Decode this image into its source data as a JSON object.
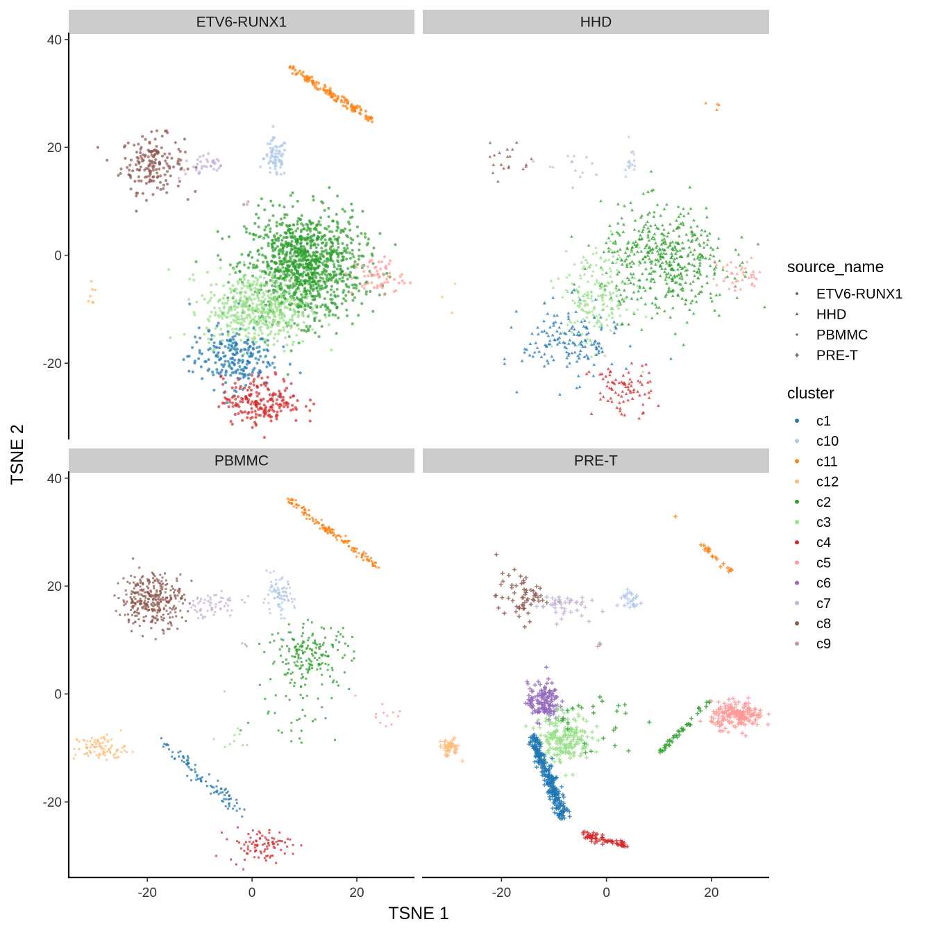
{
  "chart_data": {
    "type": "scatter",
    "xlabel": "TSNE 1",
    "ylabel": "TSNE 2",
    "xlim": [
      -35,
      31
    ],
    "ylim": [
      -34,
      41
    ],
    "x_ticks": [
      -20,
      0,
      20
    ],
    "y_ticks": [
      -20,
      0,
      20,
      40
    ],
    "x_tick_labels": [
      "-20",
      "0",
      "20"
    ],
    "y_tick_labels": [
      "-20",
      "0",
      "20",
      "40"
    ],
    "grid": false,
    "legend_position": "right",
    "facets": [
      "ETV6-RUNX1",
      "HHD",
      "PBMMC",
      "PRE-T"
    ],
    "shape_legend": {
      "title": "source_name",
      "entries": [
        {
          "label": "ETV6-RUNX1",
          "shape": "circle"
        },
        {
          "label": "HHD",
          "shape": "triangle"
        },
        {
          "label": "PBMMC",
          "shape": "square"
        },
        {
          "label": "PRE-T",
          "shape": "plus"
        }
      ]
    },
    "color_legend": {
      "title": "cluster",
      "entries": [
        {
          "label": "c1",
          "color": "#1f77b4"
        },
        {
          "label": "c10",
          "color": "#aec7e8"
        },
        {
          "label": "c11",
          "color": "#ff7f0e"
        },
        {
          "label": "c12",
          "color": "#ffbb78"
        },
        {
          "label": "c2",
          "color": "#2ca02c"
        },
        {
          "label": "c3",
          "color": "#98df8a"
        },
        {
          "label": "c4",
          "color": "#d62728"
        },
        {
          "label": "c5",
          "color": "#ff9896"
        },
        {
          "label": "c6",
          "color": "#9467bd"
        },
        {
          "label": "c7",
          "color": "#c5b0d5"
        },
        {
          "label": "c8",
          "color": "#8c564b"
        },
        {
          "label": "c9",
          "color": "#c49c94"
        }
      ]
    },
    "clusters": {
      "ETV6-RUNX1": [
        {
          "cluster": "c11",
          "kind": "line",
          "from": [
            7,
            35
          ],
          "to": [
            23,
            25
          ],
          "spread": 0.8,
          "n": 120
        },
        {
          "cluster": "c8",
          "kind": "blob",
          "cx": -19,
          "cy": 17,
          "sx": 3,
          "sy": 2.6,
          "n": 170
        },
        {
          "cluster": "c7",
          "kind": "blob",
          "cx": -9,
          "cy": 16.5,
          "sx": 2.5,
          "sy": 1.2,
          "n": 35
        },
        {
          "cluster": "c10",
          "kind": "blob",
          "cx": 4.5,
          "cy": 18,
          "sx": 1.1,
          "sy": 1.8,
          "n": 70
        },
        {
          "cluster": "c9",
          "kind": "blob",
          "cx": -1.5,
          "cy": 9.5,
          "sx": 0.5,
          "sy": 0.3,
          "n": 4
        },
        {
          "cluster": "c2",
          "kind": "blob",
          "cx": 10,
          "cy": -2,
          "sx": 5.5,
          "sy": 5,
          "n": 1100
        },
        {
          "cluster": "c3",
          "kind": "blob",
          "cx": 1,
          "cy": -10,
          "sx": 5,
          "sy": 3.5,
          "n": 500
        },
        {
          "cluster": "c5",
          "kind": "blob",
          "cx": 24,
          "cy": -4,
          "sx": 2.5,
          "sy": 1.8,
          "n": 60
        },
        {
          "cluster": "c1",
          "kind": "blob",
          "cx": -4,
          "cy": -19,
          "sx": 4,
          "sy": 2.8,
          "n": 220
        },
        {
          "cluster": "c4",
          "kind": "blob",
          "cx": 2,
          "cy": -27,
          "sx": 3.8,
          "sy": 2.2,
          "n": 200
        },
        {
          "cluster": "c12",
          "kind": "blob",
          "cx": -30.5,
          "cy": -7.5,
          "sx": 0.4,
          "sy": 2,
          "n": 7
        }
      ],
      "HHD": [
        {
          "cluster": "c11",
          "kind": "blob",
          "cx": 19,
          "cy": 27,
          "sx": 3,
          "sy": 2.5,
          "n": 4
        },
        {
          "cluster": "c8",
          "kind": "blob",
          "cx": -19,
          "cy": 18,
          "sx": 2.2,
          "sy": 2.2,
          "n": 20
        },
        {
          "cluster": "c7",
          "kind": "blob",
          "cx": -8,
          "cy": 16.5,
          "sx": 2.5,
          "sy": 1.3,
          "n": 14
        },
        {
          "cluster": "c10",
          "kind": "blob",
          "cx": 4.5,
          "cy": 18,
          "sx": 0.6,
          "sy": 1.6,
          "n": 16
        },
        {
          "cluster": "c2",
          "kind": "blob",
          "cx": 11,
          "cy": -1,
          "sx": 6,
          "sy": 5,
          "n": 480
        },
        {
          "cluster": "c3",
          "kind": "blob",
          "cx": -2,
          "cy": -8,
          "sx": 3.5,
          "sy": 4.5,
          "n": 200
        },
        {
          "cluster": "c5",
          "kind": "blob",
          "cx": 25,
          "cy": -4,
          "sx": 2.5,
          "sy": 1.5,
          "n": 40
        },
        {
          "cluster": "c1",
          "kind": "blob",
          "cx": -7,
          "cy": -16,
          "sx": 4.5,
          "sy": 3.5,
          "n": 150
        },
        {
          "cluster": "c4",
          "kind": "blob",
          "cx": 3,
          "cy": -25,
          "sx": 3,
          "sy": 2.5,
          "n": 80
        },
        {
          "cluster": "c12",
          "kind": "blob",
          "cx": -30,
          "cy": -7,
          "sx": 1,
          "sy": 1.5,
          "n": 3
        }
      ],
      "PBMMC": [
        {
          "cluster": "c11",
          "kind": "line",
          "from": [
            7,
            36
          ],
          "to": [
            24,
            23.5
          ],
          "spread": 0.7,
          "n": 140
        },
        {
          "cluster": "c8",
          "kind": "blob",
          "cx": -19,
          "cy": 17.5,
          "sx": 3,
          "sy": 2.5,
          "n": 330
        },
        {
          "cluster": "c7",
          "kind": "blob",
          "cx": -8,
          "cy": 16.5,
          "sx": 3,
          "sy": 1.2,
          "n": 60
        },
        {
          "cluster": "c10",
          "kind": "blob",
          "cx": 5,
          "cy": 18,
          "sx": 1.5,
          "sy": 1.7,
          "n": 80
        },
        {
          "cluster": "c9",
          "kind": "blob",
          "cx": -1.5,
          "cy": 9,
          "sx": 0.4,
          "sy": 0.2,
          "n": 3
        },
        {
          "cluster": "c2",
          "kind": "blob",
          "cx": 11,
          "cy": 7,
          "sx": 4,
          "sy": 3,
          "n": 190
        },
        {
          "cluster": "c2b",
          "cluster_color": "c2",
          "kind": "blob",
          "cx": 8,
          "cy": -4,
          "sx": 4,
          "sy": 2.5,
          "n": 25
        },
        {
          "cluster": "c5",
          "kind": "blob",
          "cx": 25,
          "cy": -3.5,
          "sx": 2.5,
          "sy": 1.5,
          "n": 12
        },
        {
          "cluster": "c3",
          "kind": "blob",
          "cx": -3,
          "cy": -8,
          "sx": 2,
          "sy": 3,
          "n": 10
        },
        {
          "cluster": "c1",
          "kind": "line",
          "from": [
            -17,
            -9
          ],
          "to": [
            -2,
            -22
          ],
          "spread": 1.6,
          "n": 90
        },
        {
          "cluster": "c4",
          "kind": "blob",
          "cx": 1.5,
          "cy": -28,
          "sx": 3,
          "sy": 1.5,
          "n": 90
        },
        {
          "cluster": "c12",
          "kind": "blob",
          "cx": -29,
          "cy": -10,
          "sx": 2.5,
          "sy": 1.2,
          "n": 90
        }
      ],
      "PRE-T": [
        {
          "cluster": "c11",
          "kind": "line",
          "from": [
            18,
            28
          ],
          "to": [
            24,
            22.5
          ],
          "spread": 0.5,
          "n": 20
        },
        {
          "cluster": "c11b",
          "cluster_color": "c11",
          "kind": "blob",
          "cx": 13,
          "cy": 33,
          "sx": 0.1,
          "sy": 0.1,
          "n": 1
        },
        {
          "cluster": "c8",
          "kind": "blob",
          "cx": -16,
          "cy": 18,
          "sx": 2.5,
          "sy": 2.2,
          "n": 60
        },
        {
          "cluster": "c7",
          "kind": "blob",
          "cx": -9,
          "cy": 16.5,
          "sx": 2.5,
          "sy": 1.2,
          "n": 40
        },
        {
          "cluster": "c10",
          "kind": "blob",
          "cx": 4.5,
          "cy": 17.5,
          "sx": 1.2,
          "sy": 1.2,
          "n": 25
        },
        {
          "cluster": "c9",
          "kind": "blob",
          "cx": -1.5,
          "cy": 9.5,
          "sx": 0.4,
          "sy": 0.3,
          "n": 3
        },
        {
          "cluster": "c6",
          "kind": "blob",
          "cx": -12,
          "cy": -1.5,
          "sx": 1.5,
          "sy": 1.8,
          "n": 140
        },
        {
          "cluster": "c3",
          "kind": "blob",
          "cx": -8,
          "cy": -8,
          "sx": 2.5,
          "sy": 2.3,
          "n": 200
        },
        {
          "cluster": "c2",
          "kind": "blob",
          "cx": -3,
          "cy": -5,
          "sx": 4.5,
          "sy": 3,
          "n": 25
        },
        {
          "cluster": "c2b",
          "cluster_color": "c2",
          "kind": "line",
          "from": [
            10,
            -11
          ],
          "to": [
            20,
            -1
          ],
          "spread": 0.6,
          "n": 40
        },
        {
          "cluster": "c5",
          "kind": "blob",
          "cx": 25,
          "cy": -4,
          "sx": 2.5,
          "sy": 1.2,
          "n": 180
        },
        {
          "cluster": "c1",
          "kind": "line",
          "from": [
            -14,
            -8
          ],
          "to": [
            -8,
            -23
          ],
          "spread": 1.1,
          "n": 260
        },
        {
          "cluster": "c4",
          "kind": "line",
          "from": [
            -5,
            -26
          ],
          "to": [
            4,
            -28
          ],
          "spread": 0.8,
          "n": 60
        },
        {
          "cluster": "c12",
          "kind": "blob",
          "cx": -30,
          "cy": -10,
          "sx": 1,
          "sy": 0.8,
          "n": 40
        }
      ]
    }
  }
}
